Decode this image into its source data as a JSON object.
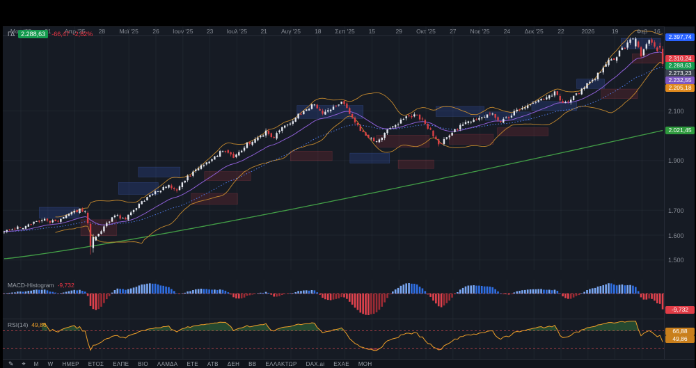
{
  "symbol_legend": {
    "symbol": "ΓΔ",
    "last": "2.288,63",
    "change": "-66,47",
    "change_pct": "-2,82%",
    "up_color": "#149a4e",
    "down_color": "#f23645"
  },
  "price_axis": {
    "ticks": {
      "labels": [
        "2.100",
        "1.900",
        "1.700",
        "1.600",
        "1.500"
      ],
      "values": [
        2100,
        1900,
        1700,
        1600,
        1500
      ]
    },
    "badges": [
      {
        "name": "level-high-badge",
        "label": "2.397,74",
        "value": 2397.74,
        "bg": "#2962ff",
        "fg": "#ffffff"
      },
      {
        "name": "band-upper-badge",
        "label": "2.310,24",
        "value": 2310.24,
        "bg": "#e03c46",
        "fg": "#ffffff"
      },
      {
        "name": "last-price-axis-badge",
        "label": "2.288,63",
        "value": 2288.63,
        "bg": "#149a4e",
        "fg": "#ffffff"
      },
      {
        "name": "ma-fast-badge",
        "label": "2.273,23",
        "value": 2273.23,
        "bg": "#3c4250",
        "fg": "#ffffff"
      },
      {
        "name": "ma-purple-badge",
        "label": "2.232,55",
        "value": 2232.55,
        "bg": "#7e57c2",
        "fg": "#ffffff"
      },
      {
        "name": "band-lower-badge",
        "label": "2.205,18",
        "value": 2205.18,
        "bg": "#e08a1e",
        "fg": "#ffffff"
      },
      {
        "name": "sma200-badge",
        "label": "2.021,45",
        "value": 2021.45,
        "bg": "#2f9a3e",
        "fg": "#ffffff"
      }
    ]
  },
  "time_axis": {
    "labels": [
      "Μαρ '25",
      "31",
      "Απρ '25",
      "28",
      "Μαϊ '25",
      "26",
      "Ιουν '25",
      "23",
      "Ιουλ '25",
      "21",
      "Αυγ '25",
      "18",
      "Σεπ '25",
      "15",
      "29",
      "Οκτ '25",
      "27",
      "Νοε '25",
      "24",
      "Δεκ '25",
      "22",
      "2026",
      "19",
      "Φεβ",
      "16"
    ]
  },
  "macd": {
    "label": "MACD-Histogram",
    "value": "-9,732",
    "value_num": -9.732,
    "pos_color": "#2f6fe4",
    "pos_color_light": "#7aa7f2",
    "neg_color": "#e0424d",
    "neg_color_dark": "#9c2b34",
    "badge_bg": "#e03c46"
  },
  "rsi": {
    "label": "RSI(14)",
    "value": "49,86",
    "value_num": 49.86,
    "ma_value": "66,88",
    "ma_value_num": 66.88,
    "line_color": "#f0a028",
    "band_color": "#d2494f",
    "upper_level": 70,
    "lower_level": 30,
    "badge_bg": "#c97f1c"
  },
  "bottom_bar": {
    "items": [
      "Μ",
      "W",
      "ΗΜΕΡ",
      "ΕΤΟΣ",
      "ΕΛΠΕ",
      "ΒΙΟ",
      "ΛΑΜΔΑ",
      "ΕΤΕ",
      "ΑΤΒ",
      "ΔΕΗ",
      "ΒΒ",
      "ΕΛΛΑΚΤΩΡ",
      "DAX.ai",
      "ΕΧΑΕ",
      "ΜΟΗ"
    ]
  },
  "chart_data": {
    "type": "candlestick",
    "symbol": "ΓΔ",
    "title": "ΓΔ 2.288,63 -66,47 -2,82%",
    "timeframe": "daily",
    "span": [
      "Μαρ 2025",
      "Φεβ 2026"
    ],
    "last": 2288.63,
    "prev_close": 2355.1,
    "change": -66.47,
    "change_pct": -2.82,
    "high_level": 2397.74,
    "sma200_last": 2021.45,
    "macd_hist_last": -9.732,
    "rsi_last": 49.86,
    "price_range": [
      1460,
      2440
    ],
    "bars": 245,
    "trend_anchors": [
      [
        0.0,
        1615
      ],
      [
        0.03,
        1635
      ],
      [
        0.06,
        1662
      ],
      [
        0.08,
        1650
      ],
      [
        0.1,
        1685
      ],
      [
        0.115,
        1702
      ],
      [
        0.124,
        1688
      ],
      [
        0.131,
        1560
      ],
      [
        0.136,
        1585
      ],
      [
        0.145,
        1612
      ],
      [
        0.155,
        1650
      ],
      [
        0.17,
        1678
      ],
      [
        0.182,
        1662
      ],
      [
        0.195,
        1695
      ],
      [
        0.21,
        1735
      ],
      [
        0.228,
        1772
      ],
      [
        0.248,
        1798
      ],
      [
        0.262,
        1782
      ],
      [
        0.28,
        1838
      ],
      [
        0.3,
        1878
      ],
      [
        0.32,
        1918
      ],
      [
        0.335,
        1944
      ],
      [
        0.347,
        1916
      ],
      [
        0.362,
        1950
      ],
      [
        0.38,
        1988
      ],
      [
        0.398,
        2014
      ],
      [
        0.41,
        1996
      ],
      [
        0.425,
        2044
      ],
      [
        0.438,
        2062
      ],
      [
        0.455,
        2098
      ],
      [
        0.47,
        2124
      ],
      [
        0.486,
        2086
      ],
      [
        0.5,
        2118
      ],
      [
        0.514,
        2132
      ],
      [
        0.53,
        2062
      ],
      [
        0.548,
        1998
      ],
      [
        0.565,
        1976
      ],
      [
        0.59,
        2040
      ],
      [
        0.61,
        2070
      ],
      [
        0.626,
        2088
      ],
      [
        0.645,
        2028
      ],
      [
        0.662,
        1962
      ],
      [
        0.68,
        2012
      ],
      [
        0.7,
        2050
      ],
      [
        0.716,
        2064
      ],
      [
        0.738,
        2088
      ],
      [
        0.755,
        2056
      ],
      [
        0.775,
        2094
      ],
      [
        0.792,
        2112
      ],
      [
        0.818,
        2146
      ],
      [
        0.836,
        2172
      ],
      [
        0.85,
        2132
      ],
      [
        0.866,
        2162
      ],
      [
        0.88,
        2192
      ],
      [
        0.9,
        2242
      ],
      [
        0.915,
        2292
      ],
      [
        0.93,
        2322
      ],
      [
        0.942,
        2356
      ],
      [
        0.952,
        2386
      ],
      [
        0.958,
        2394
      ],
      [
        0.968,
        2318
      ],
      [
        0.978,
        2384
      ],
      [
        0.988,
        2362
      ],
      [
        1.0,
        2288.63
      ]
    ],
    "zones": [
      {
        "x0": 0.055,
        "x1": 0.115,
        "p0": 1712,
        "p1": 1668,
        "k": "b"
      },
      {
        "x0": 0.118,
        "x1": 0.172,
        "p0": 1662,
        "p1": 1598,
        "k": "r"
      },
      {
        "x0": 0.175,
        "x1": 0.235,
        "p0": 1812,
        "p1": 1764,
        "k": "b"
      },
      {
        "x0": 0.205,
        "x1": 0.268,
        "p0": 1874,
        "p1": 1834,
        "k": "b"
      },
      {
        "x0": 0.285,
        "x1": 0.355,
        "p0": 1768,
        "p1": 1724,
        "k": "r"
      },
      {
        "x0": 0.305,
        "x1": 0.375,
        "p0": 1856,
        "p1": 1820,
        "k": "r"
      },
      {
        "x0": 0.445,
        "x1": 0.545,
        "p0": 2122,
        "p1": 2070,
        "k": "b"
      },
      {
        "x0": 0.435,
        "x1": 0.498,
        "p0": 1938,
        "p1": 1900,
        "k": "r"
      },
      {
        "x0": 0.525,
        "x1": 0.585,
        "p0": 1930,
        "p1": 1890,
        "k": "b"
      },
      {
        "x0": 0.565,
        "x1": 0.645,
        "p0": 2002,
        "p1": 1954,
        "k": "r"
      },
      {
        "x0": 0.598,
        "x1": 0.652,
        "p0": 1902,
        "p1": 1868,
        "k": "r"
      },
      {
        "x0": 0.655,
        "x1": 0.728,
        "p0": 2118,
        "p1": 2078,
        "k": "b"
      },
      {
        "x0": 0.675,
        "x1": 0.742,
        "p0": 2006,
        "p1": 1966,
        "k": "r"
      },
      {
        "x0": 0.73,
        "x1": 0.798,
        "p0": 2096,
        "p1": 2062,
        "k": "b"
      },
      {
        "x0": 0.748,
        "x1": 0.825,
        "p0": 2032,
        "p1": 2000,
        "k": "r"
      },
      {
        "x0": 0.8,
        "x1": 0.868,
        "p0": 2138,
        "p1": 2102,
        "k": "b"
      },
      {
        "x0": 0.868,
        "x1": 0.91,
        "p0": 2228,
        "p1": 2190,
        "k": "b"
      },
      {
        "x0": 0.905,
        "x1": 0.96,
        "p0": 2188,
        "p1": 2150,
        "k": "r"
      },
      {
        "x0": 0.935,
        "x1": 0.995,
        "p0": 2392,
        "p1": 2350,
        "k": "b"
      },
      {
        "x0": 0.952,
        "x1": 1.0,
        "p0": 2330,
        "p1": 2292,
        "k": "r"
      }
    ]
  }
}
